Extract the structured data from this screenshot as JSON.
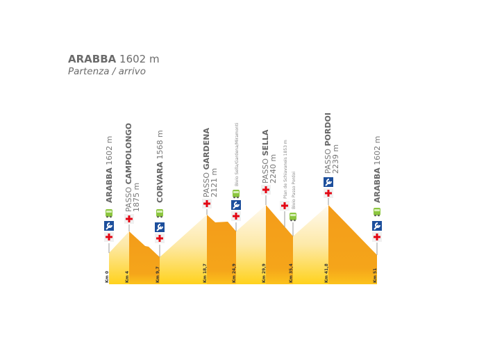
{
  "header": {
    "name": "ARABBA",
    "altitude": "1602 m",
    "subtitle": "Partenza / arrivo"
  },
  "colors": {
    "climb_top": "#fff6dc",
    "climb_bottom": "#ffd21c",
    "descent": "#f39c1a",
    "cross": "#e30613",
    "wrench_bg": "#1d4f9c",
    "bus": "#8cc63f"
  },
  "points": [
    {
      "km_label": "Km 0",
      "name_bold": "ARABBA",
      "altitude": "1602 m",
      "icons": [
        "bus-icon",
        "wrench-icon",
        "first-aid-icon"
      ]
    },
    {
      "km_label": "Km 4",
      "name_prefix": "PASSO",
      "name_bold": "CAMPOLONGO",
      "altitude": "1875 m",
      "icons": [
        "first-aid-icon"
      ]
    },
    {
      "km_label": "Km 9,7",
      "name_bold": "CORVARA",
      "altitude": "1568 m",
      "icons": [
        "bus-icon",
        "wrench-icon",
        "first-aid-icon"
      ]
    },
    {
      "km_label": "Km 18,7",
      "name_prefix": "PASSO",
      "name_bold": "GARDENA",
      "altitude": "2121 m",
      "icons": [
        "first-aid-icon"
      ]
    },
    {
      "km_label": "Km 24,9",
      "name": "Bivio Sella/Gardena/Miramonti",
      "icons": [
        "bus-icon",
        "wrench-icon",
        "first-aid-icon"
      ]
    },
    {
      "km_label": "Km 29,9",
      "name_prefix": "PASSO",
      "name_bold": "SELLA",
      "altitude": "2240 m",
      "icons": [
        "first-aid-icon"
      ]
    },
    {
      "name": "Plan de Schiavaneis 1853 m",
      "icons": [
        "first-aid-icon"
      ]
    },
    {
      "km_label": "Km 35,4",
      "name": "Bivio Passo Pordoi",
      "icons": [
        "bus-icon"
      ]
    },
    {
      "km_label": "Km 41,8",
      "name_prefix": "PASSO",
      "name_bold": "PORDOI",
      "altitude": "2239 m",
      "icons": [
        "wrench-icon",
        "first-aid-icon"
      ]
    },
    {
      "km_label": "Km 51",
      "name_bold": "ARABBA",
      "altitude": "1602 m",
      "icons": [
        "bus-icon",
        "wrench-icon",
        "first-aid-icon"
      ]
    }
  ]
}
